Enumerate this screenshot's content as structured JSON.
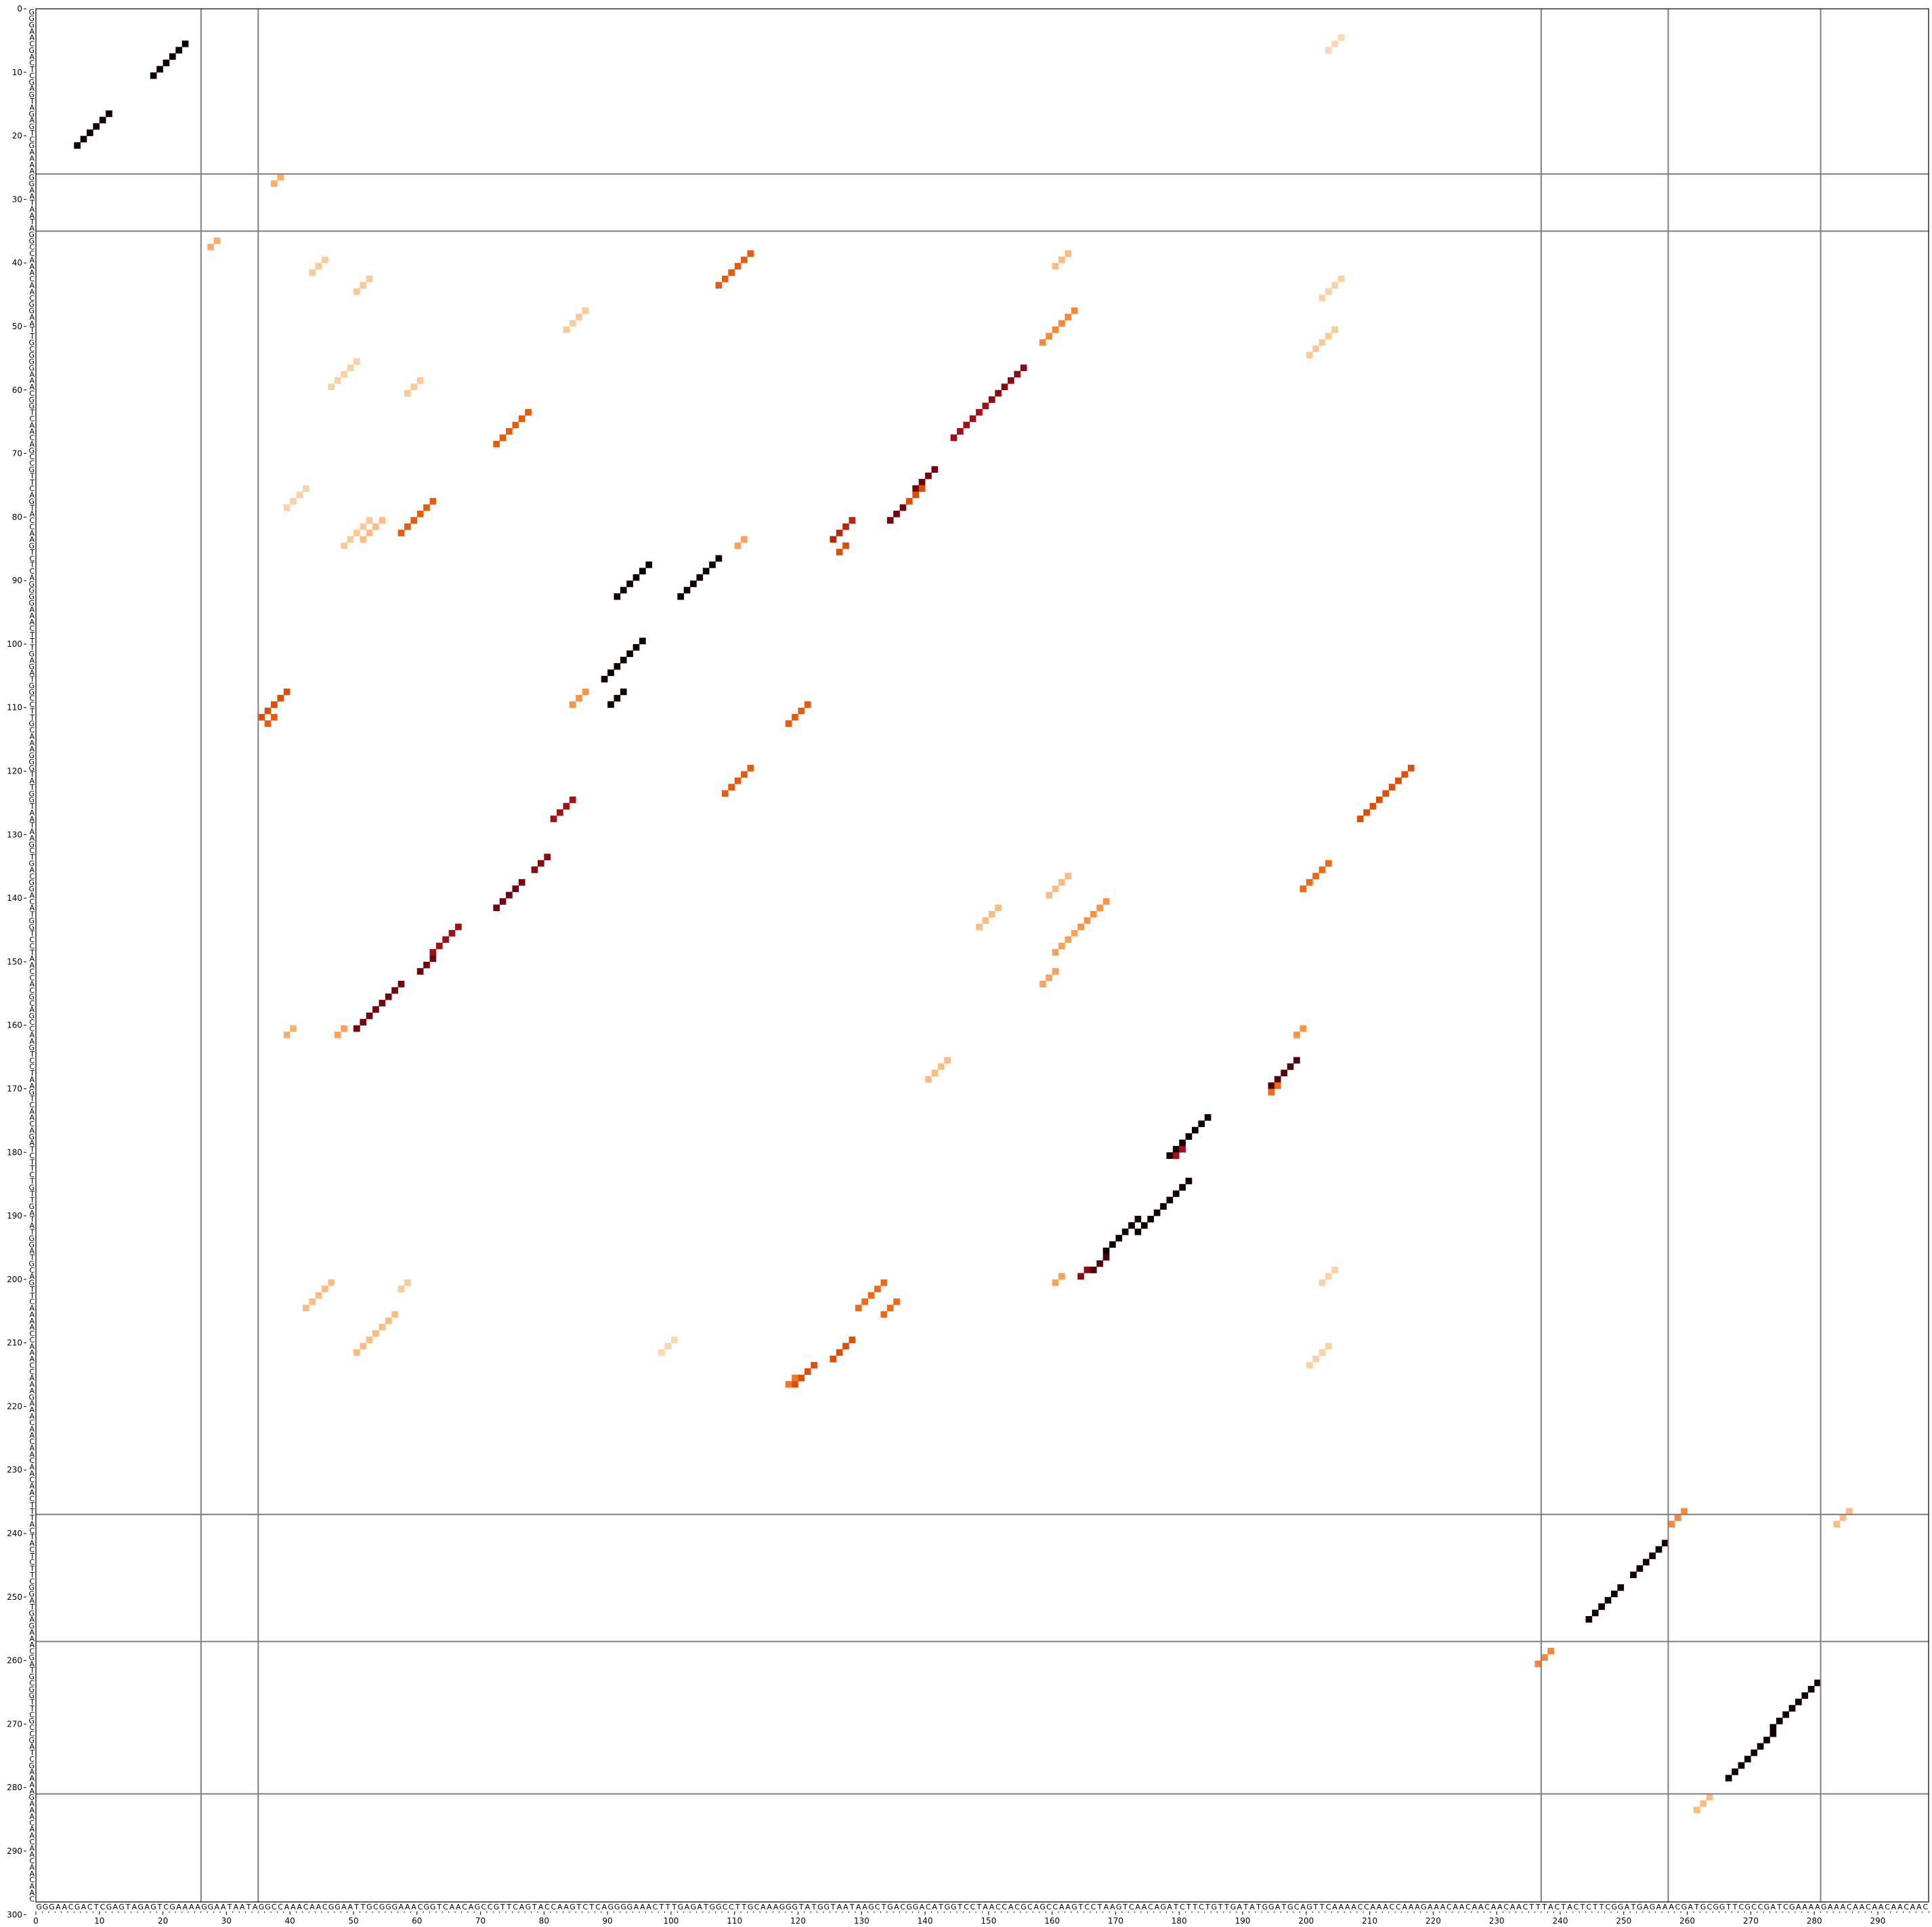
{
  "chart_data": {
    "type": "heatmap",
    "title": "",
    "xlabel": "",
    "ylabel": "",
    "xlim": [
      0,
      304
    ],
    "ylim": [
      0,
      304
    ],
    "axis_ticks": [
      0,
      10,
      20,
      30,
      40,
      50,
      60,
      70,
      80,
      90,
      100,
      110,
      120,
      130,
      140,
      150,
      160,
      170,
      180,
      190,
      200,
      210,
      220,
      230,
      240,
      250,
      260,
      270,
      280,
      290,
      300
    ],
    "sequence": "GGGAACGACTCGAGTAGAGTCGAAAAGGAATAATAGGCCAAACAACGGAATTGCGGGAAACGGTCAACAGCCGTTCAGTACCAAGTCTCAGGGGAAACTTTGAGATGGCCTTGCAAAGGGTATGGTAATAAGCTGACGGACATGGTCCTAACCACGCAGCCAAGTCCTAAGTCAACAGATCTTCTGTTGATATGGATGCAGTTCAAAACCAAACCAAAGAAACAACAACAACAACTTTACTACTCTTCGGATGAGAAACGATGCGGTTCGCCGATCGAAAAGAAACAACAACAACAAC",
    "segment_boundaries": [
      26,
      35,
      237,
      257,
      281
    ],
    "colormap": [
      "#fff5eb",
      "#fdd0a2",
      "#fdae6b",
      "#fd8d3c",
      "#f16913",
      "#d94801",
      "#a50f15",
      "#67000d",
      "#000000"
    ],
    "helices": [
      {
        "i": 5,
        "j": 23,
        "len": 6,
        "p": 0.98
      },
      {
        "i": 16,
        "j": 11,
        "len": 6,
        "p": 0.98
      },
      {
        "i": 26,
        "j": 38,
        "len": 2,
        "p": 0.25
      },
      {
        "i": 36,
        "j": 28,
        "len": 2,
        "p": 0.25
      },
      {
        "i": 38,
        "j": 112,
        "len": 6,
        "p": 0.55
      },
      {
        "i": 38,
        "j": 162,
        "len": 3,
        "p": 0.2
      },
      {
        "i": 47,
        "j": 163,
        "len": 6,
        "p": 0.4
      },
      {
        "i": 56,
        "j": 155,
        "len": 6,
        "p": 0.8
      },
      {
        "i": 62,
        "j": 149,
        "len": 6,
        "p": 0.75
      },
      {
        "i": 55,
        "j": 50,
        "len": 5,
        "p": 0.12
      },
      {
        "i": 63,
        "j": 77,
        "len": 6,
        "p": 0.55
      },
      {
        "i": 77,
        "j": 62,
        "len": 6,
        "p": 0.55
      },
      {
        "i": 72,
        "j": 141,
        "len": 4,
        "p": 0.85
      },
      {
        "i": 75,
        "j": 139,
        "len": 3,
        "p": 0.6
      },
      {
        "i": 78,
        "j": 136,
        "len": 3,
        "p": 0.85
      },
      {
        "i": 80,
        "j": 128,
        "len": 4,
        "p": 0.7
      },
      {
        "i": 84,
        "j": 127,
        "len": 2,
        "p": 0.6
      },
      {
        "i": 83,
        "j": 111,
        "len": 2,
        "p": 0.3
      },
      {
        "i": 86,
        "j": 107,
        "len": 7,
        "p": 0.98
      },
      {
        "i": 87,
        "j": 96,
        "len": 6,
        "p": 0.98
      },
      {
        "i": 99,
        "j": 95,
        "len": 7,
        "p": 0.98
      },
      {
        "i": 107,
        "j": 92,
        "len": 3,
        "p": 0.98
      },
      {
        "i": 107,
        "j": 86,
        "len": 3,
        "p": 0.35
      },
      {
        "i": 107,
        "j": 39,
        "len": 5,
        "p": 0.6
      },
      {
        "i": 111,
        "j": 37,
        "len": 2,
        "p": 0.55
      },
      {
        "i": 109,
        "j": 121,
        "len": 4,
        "p": 0.55
      },
      {
        "i": 119,
        "j": 112,
        "len": 5,
        "p": 0.55
      },
      {
        "i": 119,
        "j": 216,
        "len": 9,
        "p": 0.6
      },
      {
        "i": 124,
        "j": 84,
        "len": 4,
        "p": 0.75
      },
      {
        "i": 133,
        "j": 80,
        "len": 3,
        "p": 0.8
      },
      {
        "i": 137,
        "j": 76,
        "len": 5,
        "p": 0.85
      },
      {
        "i": 144,
        "j": 66,
        "len": 5,
        "p": 0.75
      },
      {
        "i": 149,
        "j": 62,
        "len": 3,
        "p": 0.85
      },
      {
        "i": 153,
        "j": 57,
        "len": 5,
        "p": 0.85
      },
      {
        "i": 158,
        "j": 52,
        "len": 3,
        "p": 0.85
      },
      {
        "i": 134,
        "j": 203,
        "len": 5,
        "p": 0.5
      },
      {
        "i": 136,
        "j": 162,
        "len": 4,
        "p": 0.2
      },
      {
        "i": 140,
        "j": 168,
        "len": 5,
        "p": 0.35
      },
      {
        "i": 141,
        "j": 151,
        "len": 4,
        "p": 0.2
      },
      {
        "i": 145,
        "j": 163,
        "len": 4,
        "p": 0.3
      },
      {
        "i": 151,
        "j": 160,
        "len": 3,
        "p": 0.3
      },
      {
        "i": 160,
        "j": 40,
        "len": 2,
        "p": 0.25
      },
      {
        "i": 160,
        "j": 48,
        "len": 2,
        "p": 0.3
      },
      {
        "i": 160,
        "j": 199,
        "len": 2,
        "p": 0.35
      },
      {
        "i": 165,
        "j": 198,
        "len": 5,
        "p": 0.9
      },
      {
        "i": 169,
        "j": 195,
        "len": 2,
        "p": 0.5
      },
      {
        "i": 174,
        "j": 184,
        "len": 7,
        "p": 0.98
      },
      {
        "i": 179,
        "j": 180,
        "len": 2,
        "p": 0.75
      },
      {
        "i": 184,
        "j": 181,
        "len": 9,
        "p": 0.98
      },
      {
        "i": 190,
        "j": 173,
        "len": 6,
        "p": 0.98
      },
      {
        "i": 196,
        "j": 168,
        "len": 3,
        "p": 0.9
      },
      {
        "i": 198,
        "j": 165,
        "len": 2,
        "p": 0.8
      },
      {
        "i": 199,
        "j": 161,
        "len": 2,
        "p": 0.3
      },
      {
        "i": 200,
        "j": 133,
        "len": 5,
        "p": 0.5
      },
      {
        "i": 203,
        "j": 135,
        "len": 3,
        "p": 0.5
      },
      {
        "i": 205,
        "j": 56,
        "len": 7,
        "p": 0.2
      },
      {
        "i": 209,
        "j": 128,
        "len": 4,
        "p": 0.6
      },
      {
        "i": 213,
        "j": 122,
        "len": 4,
        "p": 0.6
      },
      {
        "i": 215,
        "j": 119,
        "len": 2,
        "p": 0.45
      },
      {
        "i": 236,
        "j": 259,
        "len": 3,
        "p": 0.4
      },
      {
        "i": 241,
        "j": 256,
        "len": 6,
        "p": 0.98
      },
      {
        "i": 248,
        "j": 249,
        "len": 6,
        "p": 0.98
      },
      {
        "i": 236,
        "j": 285,
        "len": 3,
        "p": 0.2
      },
      {
        "i": 258,
        "j": 238,
        "len": 3,
        "p": 0.4
      },
      {
        "i": 263,
        "j": 280,
        "len": 8,
        "p": 0.98
      },
      {
        "i": 271,
        "j": 273,
        "len": 8,
        "p": 0.98
      },
      {
        "i": 281,
        "j": 263,
        "len": 3,
        "p": 0.2
      },
      {
        "i": 39,
        "j": 45,
        "len": 3,
        "p": 0.15
      },
      {
        "i": 42,
        "j": 52,
        "len": 3,
        "p": 0.15
      },
      {
        "i": 75,
        "j": 42,
        "len": 4,
        "p": 0.12
      },
      {
        "i": 80,
        "j": 52,
        "len": 5,
        "p": 0.15
      },
      {
        "i": 47,
        "j": 86,
        "len": 4,
        "p": 0.15
      },
      {
        "i": 58,
        "j": 60,
        "len": 3,
        "p": 0.15
      },
      {
        "i": 80,
        "j": 54,
        "len": 4,
        "p": 0.2
      },
      {
        "i": 42,
        "j": 205,
        "len": 4,
        "p": 0.12
      },
      {
        "i": 50,
        "j": 204,
        "len": 5,
        "p": 0.15
      },
      {
        "i": 165,
        "j": 143,
        "len": 4,
        "p": 0.2
      },
      {
        "i": 200,
        "j": 46,
        "len": 5,
        "p": 0.2
      },
      {
        "i": 200,
        "j": 58,
        "len": 2,
        "p": 0.15
      },
      {
        "i": 198,
        "j": 204,
        "len": 3,
        "p": 0.12
      },
      {
        "i": 210,
        "j": 203,
        "len": 4,
        "p": 0.12
      },
      {
        "i": 209,
        "j": 100,
        "len": 3,
        "p": 0.1
      },
      {
        "i": 4,
        "j": 205,
        "len": 3,
        "p": 0.1
      }
    ]
  }
}
